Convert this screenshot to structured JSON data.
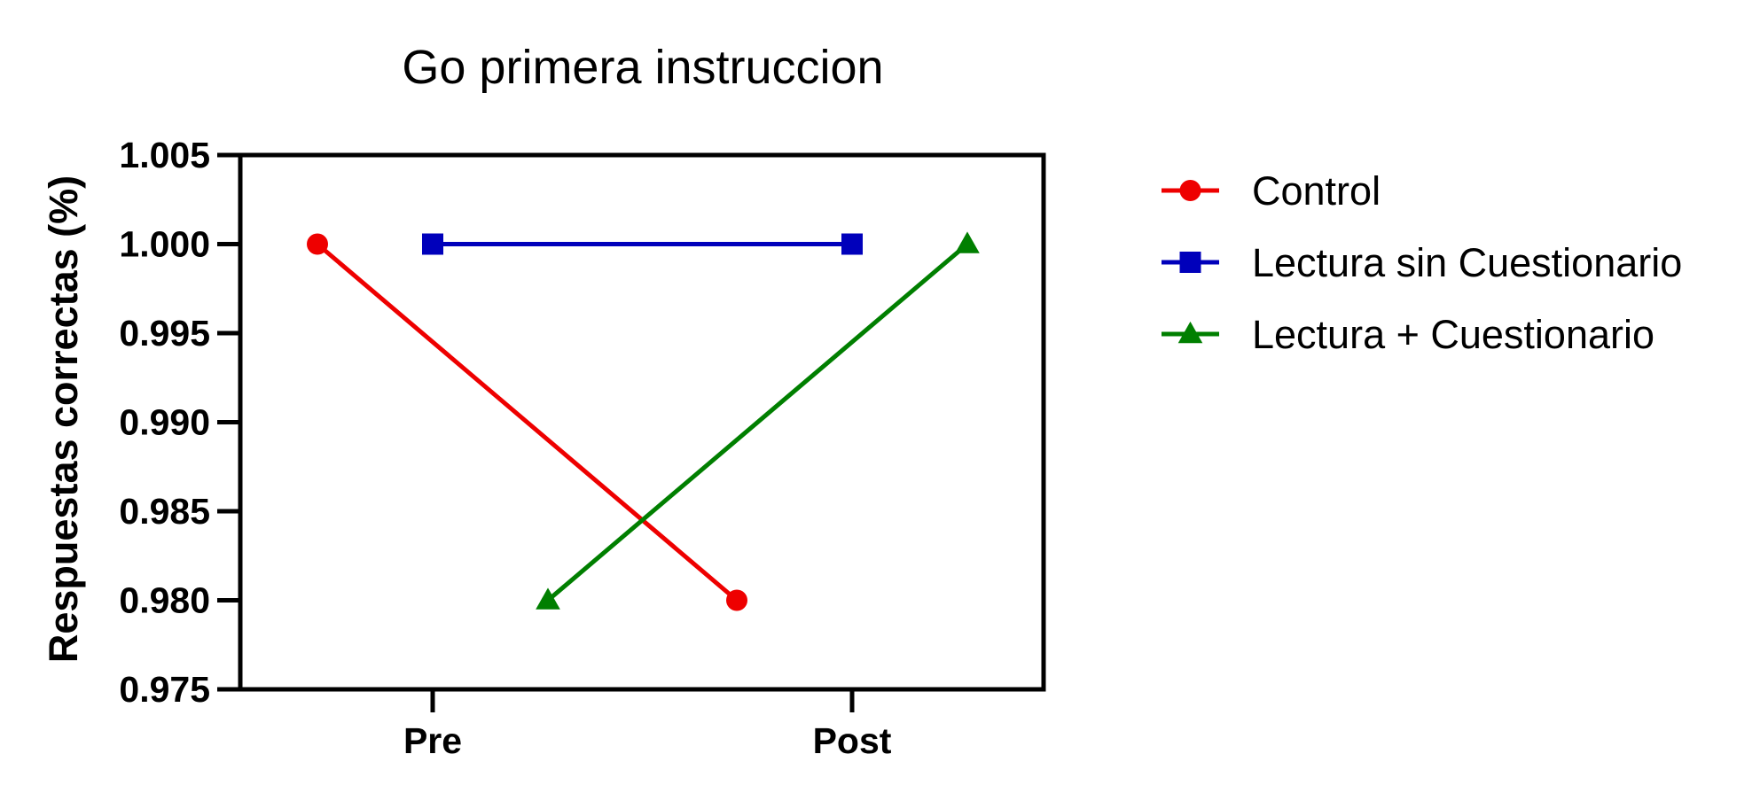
{
  "chart_data": {
    "type": "line",
    "title": "Go primera instruccion",
    "xlabel": "",
    "ylabel": "Respuestas correctas (%)",
    "categories": [
      "Pre",
      "Post"
    ],
    "ylim": [
      0.975,
      1.005
    ],
    "yticks": [
      "0.975",
      "0.980",
      "0.985",
      "0.990",
      "0.995",
      "1.000",
      "1.005"
    ],
    "legend_position": "right",
    "grid": false,
    "series": [
      {
        "name": "Control",
        "values": [
          1.0,
          0.98
        ],
        "color": "#EE0000",
        "marker": "circle"
      },
      {
        "name": "Lectura sin Cuestionario",
        "values": [
          1.0,
          1.0
        ],
        "color": "#0000BB",
        "marker": "square"
      },
      {
        "name": "Lectura + Cuestionario",
        "values": [
          0.98,
          1.0
        ],
        "color": "#007F00",
        "marker": "triangle"
      }
    ]
  }
}
